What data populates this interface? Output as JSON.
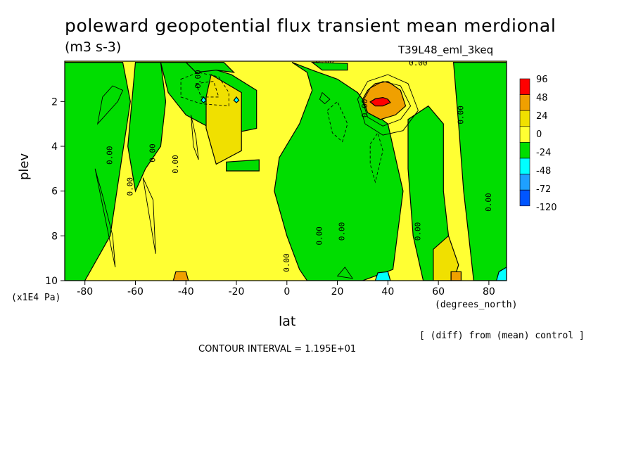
{
  "chart_data": {
    "type": "heatmap",
    "title": "poleward geopotential flux transient mean merdional",
    "units": "(m3 s-3)",
    "run_label": "T39L48_eml_3keq",
    "xlabel": "lat",
    "x_units": "(degrees_north)",
    "ylabel": "plev",
    "y_units": "(x1E4 Pa)",
    "note": "[ (diff) from (mean) control ]",
    "contour_interval_text": "CONTOUR INTERVAL = 1.195E+01",
    "xlim": [
      -88,
      87
    ],
    "ylim": [
      10,
      0.2
    ],
    "x_ticks": [
      {
        "value": -80,
        "label": "-80"
      },
      {
        "value": -60,
        "label": "-60"
      },
      {
        "value": -40,
        "label": "-40"
      },
      {
        "value": -20,
        "label": "-20"
      },
      {
        "value": 0,
        "label": "0"
      },
      {
        "value": 20,
        "label": "20"
      },
      {
        "value": 40,
        "label": "40"
      },
      {
        "value": 60,
        "label": "60"
      },
      {
        "value": 80,
        "label": "80"
      }
    ],
    "y_ticks": [
      {
        "value": 2,
        "label": "2"
      },
      {
        "value": 4,
        "label": "4"
      },
      {
        "value": 6,
        "label": "6"
      },
      {
        "value": 8,
        "label": "8"
      },
      {
        "value": 10,
        "label": "10"
      }
    ],
    "colorbar": [
      {
        "label": "96",
        "color": "#ff0000"
      },
      {
        "label": "48",
        "color": "#f0a000"
      },
      {
        "label": "24",
        "color": "#f0e000"
      },
      {
        "label": "0",
        "color": "#ffff33"
      },
      {
        "label": "-24",
        "color": "#00dd00"
      },
      {
        "label": "-48",
        "color": "#00ffff"
      },
      {
        "label": "-72",
        "color": "#1ea0ff"
      },
      {
        "label": "-120",
        "color": "#0055ff"
      }
    ],
    "colors": {
      "positive_bg": "#ffff33",
      "negative": "#00dd00",
      "weak_positive": "#f0e000",
      "moderate_positive": "#f0a000",
      "strong_positive": "#ff0000",
      "cyan": "#00ffff",
      "light_blue": "#1ea0ff"
    },
    "negative_regions": [
      [
        [
          -88,
          0.25
        ],
        [
          -65,
          0.25
        ],
        [
          -62,
          2
        ],
        [
          -66,
          5
        ],
        [
          -70,
          8
        ],
        [
          -80,
          10
        ],
        [
          -88,
          10
        ]
      ],
      [
        [
          -60,
          0.25
        ],
        [
          -50,
          0.25
        ],
        [
          -48,
          2
        ],
        [
          -50,
          4
        ],
        [
          -56,
          5
        ],
        [
          -60,
          6
        ],
        [
          -63,
          4
        ]
      ],
      [
        [
          -50,
          0.25
        ],
        [
          -38,
          0.25
        ],
        [
          -22,
          0.8
        ],
        [
          -12,
          1.5
        ],
        [
          -12,
          3.2
        ],
        [
          -25,
          3.5
        ],
        [
          -40,
          2.6
        ],
        [
          -47,
          1.6
        ]
      ],
      [
        [
          -40,
          0.25
        ],
        [
          -25,
          0.25
        ],
        [
          -21,
          0.7
        ],
        [
          -28,
          0.6
        ],
        [
          -36,
          0.7
        ]
      ],
      [
        [
          2,
          0.25
        ],
        [
          8,
          0.7
        ],
        [
          10,
          1.5
        ],
        [
          5,
          3
        ],
        [
          -3,
          4.5
        ],
        [
          -5,
          6
        ],
        [
          0,
          8
        ],
        [
          5,
          9.5
        ],
        [
          8,
          10
        ],
        [
          30,
          10
        ],
        [
          42,
          9.5
        ],
        [
          46,
          6
        ],
        [
          40,
          3
        ],
        [
          34,
          2.5
        ],
        [
          28,
          1.6
        ],
        [
          20,
          1
        ],
        [
          10,
          0.6
        ]
      ],
      [
        [
          10,
          0.25
        ],
        [
          24,
          0.3
        ],
        [
          24,
          0.6
        ],
        [
          14,
          0.6
        ]
      ],
      [
        [
          48,
          2.8
        ],
        [
          56,
          2.2
        ],
        [
          62,
          3
        ],
        [
          62,
          6
        ],
        [
          64,
          8
        ],
        [
          62,
          10
        ],
        [
          54,
          10
        ],
        [
          50,
          8
        ],
        [
          48,
          5
        ]
      ],
      [
        [
          66,
          0.25
        ],
        [
          87,
          0.25
        ],
        [
          87,
          10
        ],
        [
          74,
          10
        ],
        [
          72,
          8
        ],
        [
          70,
          6
        ],
        [
          68,
          3
        ]
      ],
      [
        [
          -24,
          4.7
        ],
        [
          -11,
          4.6
        ],
        [
          -11,
          5.1
        ],
        [
          -24,
          5.1
        ]
      ]
    ],
    "weak_positive_regions": [
      [
        [
          -30,
          0.8
        ],
        [
          -18,
          1.6
        ],
        [
          -18,
          4.2
        ],
        [
          -28,
          4.8
        ],
        [
          -32,
          3.2
        ],
        [
          -32,
          1.8
        ]
      ],
      [
        [
          58,
          8.6
        ],
        [
          64,
          8
        ],
        [
          68,
          9.3
        ],
        [
          66,
          10
        ],
        [
          58,
          10
        ]
      ]
    ],
    "moderate_positive_regions": [
      [
        [
          30,
          1.9
        ],
        [
          32,
          1.5
        ],
        [
          35,
          1.2
        ],
        [
          40,
          1.1
        ],
        [
          45,
          1.5
        ],
        [
          47,
          2.2
        ],
        [
          43,
          2.6
        ],
        [
          37,
          2.8
        ],
        [
          32,
          2.5
        ]
      ],
      [
        [
          -44,
          9.6
        ],
        [
          -40,
          9.6
        ],
        [
          -39,
          10
        ],
        [
          -45,
          10
        ]
      ],
      [
        [
          65,
          9.6
        ],
        [
          69,
          9.6
        ],
        [
          69,
          10
        ],
        [
          65,
          10
        ]
      ]
    ],
    "strong_positive_regions": [
      [
        [
          33,
          2.02
        ],
        [
          35,
          1.88
        ],
        [
          38,
          1.82
        ],
        [
          40,
          1.9
        ],
        [
          41,
          2.05
        ],
        [
          38,
          2.2
        ],
        [
          35,
          2.2
        ]
      ]
    ],
    "cyan_regions": [
      [
        [
          -33,
          1.8
        ],
        [
          -32,
          1.95
        ],
        [
          -33,
          2.05
        ],
        [
          -34,
          1.95
        ]
      ],
      [
        [
          -20,
          1.8
        ],
        [
          -19,
          1.95
        ],
        [
          -20,
          2.05
        ],
        [
          -21,
          1.95
        ]
      ],
      [
        [
          36,
          9.65
        ],
        [
          40,
          9.6
        ],
        [
          41,
          10
        ],
        [
          35,
          10
        ]
      ],
      [
        [
          84,
          9.6
        ],
        [
          87,
          9.4
        ],
        [
          87,
          10
        ],
        [
          83,
          10
        ]
      ]
    ],
    "contour_lines": [
      {
        "style": "solid",
        "points": [
          [
            30,
            2
          ],
          [
            33,
            1.4
          ],
          [
            38,
            1.1
          ],
          [
            45,
            1.3
          ],
          [
            49,
            2.2
          ],
          [
            45,
            2.8
          ],
          [
            38,
            3.1
          ],
          [
            32,
            2.7
          ]
        ]
      },
      {
        "style": "solid",
        "points": [
          [
            28,
            1.9
          ],
          [
            32,
            1.1
          ],
          [
            40,
            0.8
          ],
          [
            48,
            1.2
          ],
          [
            52,
            2.4
          ],
          [
            46,
            3.3
          ],
          [
            38,
            3.5
          ],
          [
            31,
            3
          ]
        ]
      },
      {
        "style": "solid",
        "points": [
          [
            -75,
            3
          ],
          [
            -73,
            1.8
          ],
          [
            -69,
            1.3
          ],
          [
            -65,
            1.5
          ],
          [
            -67,
            2
          ]
        ]
      },
      {
        "style": "solid",
        "points": [
          [
            -76,
            5
          ],
          [
            -73,
            6.2
          ],
          [
            -69,
            8
          ],
          [
            -68,
            9.4
          ]
        ]
      },
      {
        "style": "solid",
        "points": [
          [
            -57,
            5.4
          ],
          [
            -53,
            6.4
          ],
          [
            -52,
            8.8
          ]
        ]
      },
      {
        "style": "solid",
        "points": [
          [
            14,
            1.6
          ],
          [
            17,
            1.9
          ],
          [
            15,
            2.1
          ],
          [
            13,
            1.9
          ]
        ]
      },
      {
        "style": "solid",
        "points": [
          [
            20,
            9.8
          ],
          [
            23,
            9.4
          ],
          [
            26,
            9.9
          ]
        ]
      },
      {
        "style": "solid",
        "points": [
          [
            -38,
            2.6
          ],
          [
            -36,
            3.6
          ],
          [
            -35,
            4.6
          ],
          [
            -37,
            4
          ]
        ]
      },
      {
        "style": "dashed",
        "points": [
          [
            -42,
            1
          ],
          [
            -35,
            0.7
          ],
          [
            -27,
            0.9
          ],
          [
            -23,
            1.6
          ],
          [
            -23,
            2.2
          ],
          [
            -34,
            2.1
          ],
          [
            -42,
            1.8
          ]
        ]
      },
      {
        "style": "dashed",
        "points": [
          [
            -36,
            1.2
          ],
          [
            -29,
            1.1
          ],
          [
            -27,
            1.8
          ],
          [
            -34,
            1.8
          ]
        ]
      },
      {
        "style": "dashed",
        "points": [
          [
            33,
            3.9
          ],
          [
            36,
            3.4
          ],
          [
            38,
            4.2
          ],
          [
            35,
            5.6
          ],
          [
            33,
            4.8
          ]
        ]
      },
      {
        "style": "dashed",
        "points": [
          [
            16,
            2.4
          ],
          [
            20,
            2
          ],
          [
            24,
            3
          ],
          [
            22,
            3.8
          ],
          [
            18,
            3.4
          ]
        ]
      }
    ],
    "contour_labels": [
      {
        "text": "0.00",
        "x": 15,
        "y": 0.2,
        "angle": 0
      },
      {
        "text": "0.00",
        "x": -70,
        "y": 4.4,
        "angle": -90
      },
      {
        "text": "0.00",
        "x": -62,
        "y": 5.8,
        "angle": -90
      },
      {
        "text": "0.00",
        "x": -53,
        "y": 4.3,
        "angle": -90
      },
      {
        "text": "0.00",
        "x": -44,
        "y": 4.8,
        "angle": -90
      },
      {
        "text": "0.00",
        "x": 0,
        "y": 9.2,
        "angle": -90
      },
      {
        "text": "0.00",
        "x": 13,
        "y": 8,
        "angle": -90
      },
      {
        "text": "0.00",
        "x": 22,
        "y": 7.8,
        "angle": -90
      },
      {
        "text": "0.00",
        "x": 31,
        "y": 2.3,
        "angle": -90
      },
      {
        "text": "0.00",
        "x": 52,
        "y": 7.8,
        "angle": -90
      },
      {
        "text": "0.00",
        "x": 69,
        "y": 2.6,
        "angle": -90
      },
      {
        "text": "0.00",
        "x": 80,
        "y": 6.5,
        "angle": -90
      },
      {
        "text": "0.00",
        "x": -35,
        "y": 1,
        "angle": -90
      },
      {
        "text": "0.00",
        "x": 52,
        "y": 0.3,
        "angle": 0
      }
    ]
  }
}
